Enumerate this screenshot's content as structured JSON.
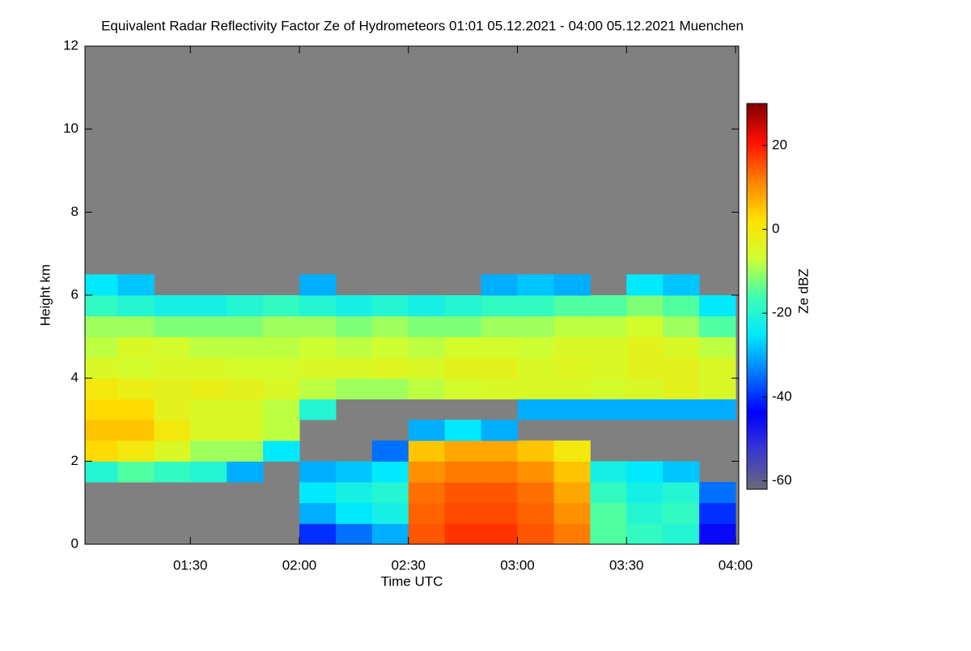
{
  "chart_data": {
    "type": "heatmap",
    "title": "Equivalent Radar Reflectivity Factor Ze of Hydrometeors   01:01 05.12.2021 - 04:00 05.12.2021 Muenchen",
    "x_label": "Time UTC",
    "y_label": "Height km",
    "colorbar_label": "Ze dBZ",
    "x": [
      61,
      70,
      80,
      90,
      100,
      110,
      120,
      130,
      140,
      150,
      160,
      170,
      180,
      190,
      200,
      210,
      220,
      230,
      240
    ],
    "y": [
      0,
      0.5,
      1,
      1.5,
      2,
      2.5,
      3,
      3.5,
      4,
      4.5,
      5,
      5.5,
      6,
      6.5,
      7
    ],
    "z": [
      [
        null,
        null,
        null,
        null,
        null,
        null,
        -40,
        -35,
        -30,
        15,
        18,
        18,
        15,
        12,
        -15,
        -18,
        -20,
        -45
      ],
      [
        null,
        null,
        null,
        null,
        null,
        null,
        -30,
        -25,
        -22,
        14,
        16,
        16,
        14,
        10,
        -15,
        -20,
        -18,
        -40
      ],
      [
        null,
        null,
        null,
        null,
        null,
        null,
        -25,
        -22,
        -20,
        13,
        15,
        15,
        13,
        8,
        -18,
        -22,
        -20,
        -35
      ],
      [
        -20,
        -15,
        -18,
        -20,
        -30,
        null,
        -30,
        -28,
        -25,
        10,
        12,
        12,
        10,
        5,
        -22,
        -25,
        -28,
        null
      ],
      [
        3,
        0,
        -5,
        -10,
        -10,
        -25,
        null,
        null,
        -35,
        5,
        8,
        8,
        5,
        0,
        null,
        null,
        null,
        null
      ],
      [
        5,
        5,
        0,
        -5,
        -5,
        -8,
        null,
        null,
        null,
        -30,
        -25,
        -30,
        null,
        null,
        null,
        null,
        null,
        null
      ],
      [
        3,
        3,
        -3,
        -5,
        -5,
        -8,
        -20,
        null,
        null,
        null,
        null,
        null,
        -30,
        -30,
        -30,
        -30,
        -30,
        -30
      ],
      [
        0,
        -2,
        -3,
        -2,
        -3,
        -5,
        -8,
        -10,
        -10,
        -8,
        -6,
        -5,
        -5,
        -5,
        -6,
        -5,
        -3,
        -5
      ],
      [
        -5,
        -6,
        -5,
        -5,
        -6,
        -6,
        -5,
        -5,
        -4,
        -5,
        -3,
        -3,
        -5,
        -4,
        -5,
        -3,
        -3,
        -5
      ],
      [
        -8,
        -5,
        -6,
        -8,
        -8,
        -8,
        -7,
        -8,
        -7,
        -8,
        -6,
        -6,
        -7,
        -5,
        -5,
        -3,
        -5,
        -8
      ],
      [
        -10,
        -10,
        -12,
        -12,
        -12,
        -10,
        -10,
        -12,
        -10,
        -12,
        -12,
        -10,
        -10,
        -8,
        -8,
        -6,
        -10,
        -15
      ],
      [
        -18,
        -20,
        -22,
        -22,
        -20,
        -18,
        -20,
        -22,
        -20,
        -22,
        -20,
        -18,
        -18,
        -15,
        -15,
        -12,
        -15,
        -25
      ],
      [
        -25,
        -28,
        null,
        null,
        null,
        null,
        -30,
        null,
        null,
        null,
        null,
        -30,
        -28,
        -30,
        null,
        -25,
        -28,
        null
      ],
      [
        null,
        null,
        null,
        null,
        null,
        null,
        null,
        null,
        null,
        null,
        null,
        null,
        null,
        null,
        null,
        null,
        null,
        null
      ]
    ],
    "xlim": [
      61,
      240
    ],
    "xticks": [
      {
        "value": 90,
        "label": "01:30"
      },
      {
        "value": 120,
        "label": "02:00"
      },
      {
        "value": 150,
        "label": "02:30"
      },
      {
        "value": 180,
        "label": "03:00"
      },
      {
        "value": 210,
        "label": "03:30"
      },
      {
        "value": 240,
        "label": "04:00"
      }
    ],
    "ylim": [
      0,
      12
    ],
    "yticks": [
      0,
      2,
      4,
      6,
      8,
      10,
      12
    ],
    "zlim": [
      -62,
      30
    ],
    "zticks": [
      -60,
      -40,
      -20,
      0,
      20
    ],
    "background": "#808080",
    "colormap": [
      "#6a6a78",
      "#3a3ad0",
      "#0000ff",
      "#0078ff",
      "#00e8ff",
      "#40ffb0",
      "#d0ff30",
      "#ffe000",
      "#ff8000",
      "#ff1000",
      "#800000"
    ]
  }
}
